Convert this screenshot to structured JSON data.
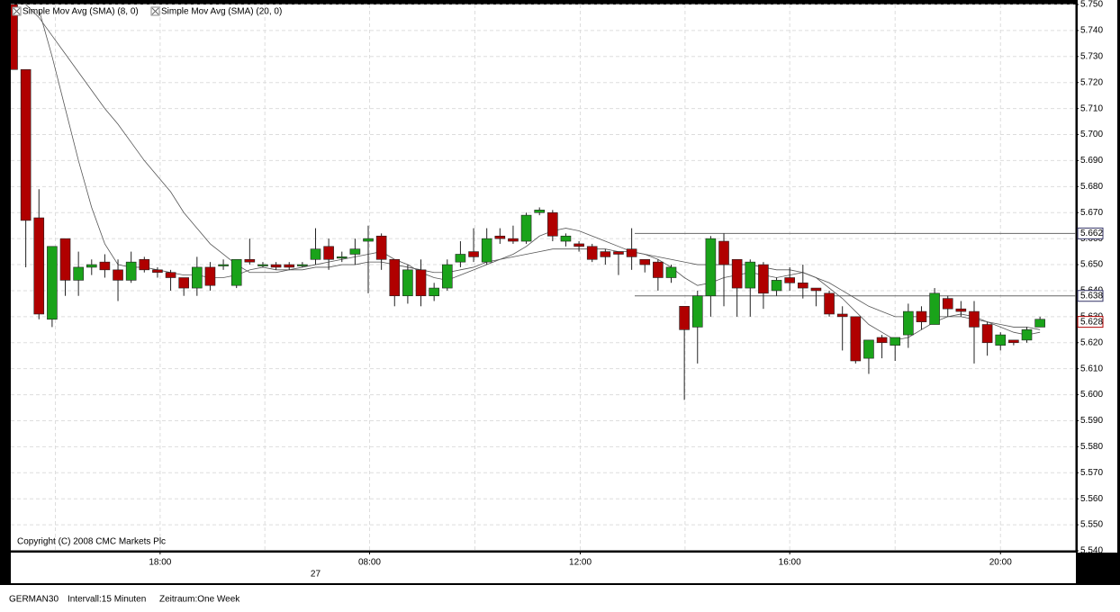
{
  "chart_data": {
    "type": "candlestick",
    "legend": [
      "Simple Mov Avg (SMA) (8, 0)",
      "Simple Mov Avg (SMA) (20, 0)"
    ],
    "copyright": "Copyright (C) 2008 CMC Markets Plc",
    "footer": [
      "GERMAN30",
      "Intervall:15 Minuten",
      "Zeitraum:One Week"
    ],
    "up_color": "#1aa31a",
    "down_color": "#b00000",
    "open": [
      5750,
      5725,
      5668,
      5629,
      5660,
      5644,
      5649,
      5651,
      5648,
      5644,
      5652,
      5648,
      5647,
      5645,
      5641,
      5649,
      5650,
      5642,
      5652,
      5650,
      5650,
      5650,
      5650,
      5652,
      5657,
      5653,
      5654,
      5659,
      5661,
      5652,
      5638,
      5648,
      5638,
      5641,
      5651,
      5655,
      5651,
      5661,
      5660,
      5659,
      5670,
      5670,
      5659,
      5658,
      5657,
      5655,
      5655,
      5656,
      5652,
      5651,
      5645,
      5634,
      5626,
      5638,
      5659,
      5652,
      5641,
      5650,
      5640,
      5645,
      5643,
      5641,
      5639,
      5631,
      5630,
      5614,
      5622,
      5619,
      5623,
      5632,
      5627,
      5637,
      5633,
      5632,
      5627,
      5619,
      5621,
      5621,
      5626
    ],
    "high": [
      5750,
      5725,
      5679,
      5657,
      5660,
      5655,
      5652,
      5654,
      5652,
      5655,
      5653,
      5649,
      5648,
      5645,
      5653,
      5651,
      5652,
      5652,
      5660,
      5651,
      5651,
      5651,
      5651,
      5664,
      5660,
      5655,
      5660,
      5665,
      5662,
      5652,
      5650,
      5652,
      5643,
      5652,
      5659,
      5664,
      5664,
      5664,
      5665,
      5670,
      5672,
      5671,
      5662,
      5659,
      5658,
      5656,
      5655,
      5664,
      5652,
      5652,
      5650,
      5634,
      5640,
      5661,
      5662,
      5652,
      5652,
      5651,
      5645,
      5649,
      5650,
      5641,
      5640,
      5634,
      5630,
      5621,
      5623,
      5622,
      5635,
      5634,
      5641,
      5638,
      5636,
      5636,
      5628,
      5624,
      5621,
      5626,
      5630
    ],
    "low": [
      5725,
      5649,
      5629,
      5626,
      5638,
      5638,
      5646,
      5645,
      5636,
      5643,
      5647,
      5645,
      5640,
      5638,
      5638,
      5640,
      5648,
      5641,
      5650,
      5649,
      5648,
      5648,
      5649,
      5650,
      5648,
      5651,
      5650,
      5639,
      5648,
      5634,
      5635,
      5634,
      5636,
      5640,
      5649,
      5651,
      5650,
      5658,
      5658,
      5658,
      5669,
      5659,
      5657,
      5655,
      5651,
      5650,
      5646,
      5648,
      5647,
      5640,
      5643,
      5598,
      5612,
      5630,
      5634,
      5630,
      5630,
      5633,
      5638,
      5640,
      5637,
      5634,
      5630,
      5617,
      5612,
      5608,
      5614,
      5613,
      5618,
      5625,
      5627,
      5630,
      5630,
      5612,
      5615,
      5617,
      5619,
      5620,
      5626
    ],
    "close": [
      5725,
      5667,
      5631,
      5657,
      5644,
      5649,
      5650,
      5648,
      5644,
      5651,
      5648,
      5647,
      5645,
      5641,
      5649,
      5642,
      5650,
      5652,
      5651,
      5650,
      5649,
      5649,
      5650,
      5656,
      5652,
      5653,
      5656,
      5660,
      5652,
      5638,
      5648,
      5638,
      5641,
      5650,
      5654,
      5653,
      5660,
      5660,
      5659,
      5669,
      5671,
      5661,
      5661,
      5657,
      5652,
      5653,
      5654,
      5653,
      5650,
      5645,
      5649,
      5625,
      5638,
      5660,
      5650,
      5641,
      5651,
      5639,
      5644,
      5643,
      5641,
      5640,
      5631,
      5630,
      5613,
      5621,
      5620,
      5622,
      5632,
      5628,
      5639,
      5633,
      5632,
      5626,
      5620,
      5623,
      5620,
      5625,
      5629
    ],
    "series": [
      {
        "name": "Simple Mov Avg (SMA) (8, 0)",
        "color": "#555555",
        "values": [
          null,
          null,
          5748,
          5730,
          5710,
          5690,
          5672,
          5658,
          5650,
          5649,
          5649,
          5648,
          5647,
          5646,
          5646,
          5645,
          5645,
          5646,
          5648,
          5649,
          5648,
          5648,
          5649,
          5650,
          5651,
          5652,
          5653,
          5654,
          5655,
          5652,
          5650,
          5647,
          5645,
          5644,
          5646,
          5648,
          5650,
          5652,
          5654,
          5657,
          5661,
          5663,
          5664,
          5663,
          5661,
          5659,
          5657,
          5655,
          5654,
          5652,
          5649,
          5645,
          5642,
          5643,
          5645,
          5646,
          5647,
          5646,
          5645,
          5646,
          5647,
          5645,
          5641,
          5637,
          5632,
          5627,
          5624,
          5621,
          5622,
          5625,
          5628,
          5630,
          5631,
          5630,
          5628,
          5626,
          5624,
          5623,
          5624
        ]
      },
      {
        "name": "Simple Mov Avg (SMA) (20, 0)",
        "color": "#555555",
        "values": [
          null,
          5750,
          5745,
          5738,
          5731,
          5724,
          5717,
          5710,
          5704,
          5697,
          5690,
          5684,
          5678,
          5670,
          5664,
          5658,
          5654,
          5650,
          5647,
          5647,
          5647,
          5648,
          5648,
          5649,
          5649,
          5650,
          5650,
          5651,
          5651,
          5650,
          5649,
          5648,
          5647,
          5647,
          5648,
          5649,
          5651,
          5652,
          5653,
          5654,
          5655,
          5656,
          5656,
          5656,
          5656,
          5656,
          5655,
          5655,
          5654,
          5653,
          5652,
          5651,
          5650,
          5650,
          5650,
          5650,
          5650,
          5649,
          5648,
          5648,
          5647,
          5645,
          5643,
          5640,
          5637,
          5634,
          5632,
          5630,
          5630,
          5630,
          5630,
          5630,
          5630,
          5629,
          5628,
          5627,
          5626,
          5626,
          5625
        ]
      }
    ],
    "hlines": [
      {
        "value": 5662,
        "label": "5.662"
      },
      {
        "value": 5638,
        "label": "5.638"
      }
    ],
    "last_price": {
      "value": 5628,
      "label": "5.628"
    },
    "ylim": [
      5540,
      5750
    ],
    "yticks": [
      {
        "value": 5540,
        "label": "5.540"
      },
      {
        "value": 5550,
        "label": "5.550"
      },
      {
        "value": 5560,
        "label": "5.560"
      },
      {
        "value": 5570,
        "label": "5.570"
      },
      {
        "value": 5580,
        "label": "5.580"
      },
      {
        "value": 5590,
        "label": "5.590"
      },
      {
        "value": 5600,
        "label": "5.600"
      },
      {
        "value": 5610,
        "label": "5.610"
      },
      {
        "value": 5620,
        "label": "5.620"
      },
      {
        "value": 5630,
        "label": "5.630"
      },
      {
        "value": 5640,
        "label": "5.640"
      },
      {
        "value": 5650,
        "label": "5.650"
      },
      {
        "value": 5660,
        "label": "5.660"
      },
      {
        "value": 5670,
        "label": "5.670"
      },
      {
        "value": 5680,
        "label": "5.680"
      },
      {
        "value": 5690,
        "label": "5.690"
      },
      {
        "value": 5700,
        "label": "5.700"
      },
      {
        "value": 5710,
        "label": "5.710"
      },
      {
        "value": 5720,
        "label": "5.720"
      },
      {
        "value": 5730,
        "label": "5.730"
      },
      {
        "value": 5740,
        "label": "5.740"
      },
      {
        "value": 5750,
        "label": "5.750"
      }
    ],
    "xticks": [
      {
        "value": 11.2,
        "label": "18:00"
      },
      {
        "value": 27.1,
        "label": "08:00"
      },
      {
        "value": 43.1,
        "label": "12:00"
      },
      {
        "value": 59,
        "label": "16:00"
      },
      {
        "value": 75,
        "label": "20:00"
      }
    ],
    "date_ticks": [
      {
        "value": 23,
        "label": "27"
      }
    ],
    "grid": true
  }
}
